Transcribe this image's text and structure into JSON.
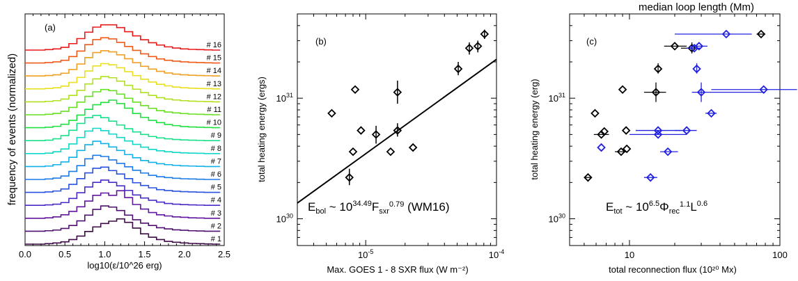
{
  "chart_data": [
    {
      "id": "a",
      "type": "line",
      "panel_label": "(a)",
      "xlabel": "log10(ε/10^26 erg)",
      "ylabel": "frequency of events (normalized)",
      "xlim": [
        0,
        2.5
      ],
      "xticks": [
        "0.0",
        "0.5",
        "1.0",
        "1.5",
        "2.0",
        "2.5"
      ],
      "xtick_values": [
        0,
        0.5,
        1.0,
        1.5,
        2.0,
        2.5
      ],
      "bins": [
        0.3,
        0.4,
        0.5,
        0.6,
        0.7,
        0.8,
        0.9,
        1.0,
        1.1,
        1.2,
        1.3,
        1.4,
        1.5,
        1.6,
        1.7,
        1.8,
        1.9,
        2.0,
        2.1,
        2.2,
        2.3,
        2.4
      ],
      "series": [
        {
          "name": "# 1",
          "color": "#3c0a44",
          "values": [
            0.02,
            0.05,
            0.1,
            0.2,
            0.35,
            0.55,
            0.75,
            0.9,
            1.0,
            1.1,
            0.95,
            0.7,
            0.45,
            0.3,
            0.2,
            0.12,
            0.08,
            0.05,
            0.03,
            0.02,
            0.01,
            0.0
          ]
        },
        {
          "name": "# 2",
          "color": "#4e1070",
          "values": [
            0.02,
            0.05,
            0.12,
            0.25,
            0.45,
            0.7,
            0.95,
            1.1,
            1.05,
            0.9,
            0.7,
            0.5,
            0.35,
            0.25,
            0.15,
            0.1,
            0.06,
            0.04,
            0.02,
            0.01,
            0.0,
            0.0
          ]
        },
        {
          "name": "# 3",
          "color": "#60159e",
          "values": [
            0.02,
            0.06,
            0.15,
            0.3,
            0.5,
            0.75,
            1.0,
            1.1,
            1.0,
            1.2,
            0.9,
            0.6,
            0.4,
            0.25,
            0.15,
            0.1,
            0.06,
            0.04,
            0.02,
            0.01,
            0.0,
            0.0
          ]
        },
        {
          "name": "# 4",
          "color": "#4a2ac8",
          "values": [
            0.02,
            0.05,
            0.12,
            0.3,
            0.55,
            0.8,
            1.0,
            1.1,
            1.0,
            0.85,
            0.65,
            0.45,
            0.32,
            0.22,
            0.14,
            0.08,
            0.05,
            0.03,
            0.02,
            0.01,
            0.0,
            0.0
          ]
        },
        {
          "name": "# 5",
          "color": "#2850e0",
          "values": [
            0.02,
            0.06,
            0.15,
            0.35,
            0.6,
            0.85,
            1.05,
            1.1,
            0.95,
            0.8,
            0.6,
            0.42,
            0.3,
            0.2,
            0.12,
            0.08,
            0.05,
            0.03,
            0.02,
            0.01,
            0.0,
            0.0
          ]
        },
        {
          "name": "# 6",
          "color": "#1a7ae8",
          "values": [
            0.02,
            0.06,
            0.15,
            0.35,
            0.6,
            0.9,
            1.05,
            1.0,
            0.85,
            0.7,
            0.55,
            0.4,
            0.28,
            0.18,
            0.12,
            0.08,
            0.05,
            0.03,
            0.02,
            0.01,
            0.0,
            0.0
          ]
        },
        {
          "name": "# 7",
          "color": "#10b0e8",
          "values": [
            0.02,
            0.08,
            0.2,
            0.4,
            0.7,
            0.95,
            1.1,
            1.0,
            0.85,
            0.7,
            0.52,
            0.38,
            0.26,
            0.18,
            0.12,
            0.08,
            0.05,
            0.03,
            0.02,
            0.01,
            0.0,
            0.0
          ]
        },
        {
          "name": "# 8",
          "color": "#10d8c8",
          "values": [
            0.02,
            0.08,
            0.2,
            0.42,
            0.7,
            0.98,
            1.1,
            1.0,
            0.85,
            0.7,
            0.55,
            0.4,
            0.28,
            0.18,
            0.12,
            0.08,
            0.05,
            0.03,
            0.02,
            0.01,
            0.0,
            0.0
          ]
        },
        {
          "name": "# 9",
          "color": "#18e08a",
          "values": [
            0.02,
            0.08,
            0.22,
            0.45,
            0.75,
            1.0,
            1.1,
            1.0,
            0.85,
            0.68,
            0.52,
            0.38,
            0.27,
            0.18,
            0.12,
            0.08,
            0.05,
            0.03,
            0.02,
            0.01,
            0.0,
            0.0
          ]
        },
        {
          "name": "# 10",
          "color": "#20e040",
          "values": [
            0.02,
            0.06,
            0.15,
            0.32,
            0.55,
            0.8,
            1.0,
            1.1,
            1.2,
            1.05,
            0.85,
            0.62,
            0.45,
            0.32,
            0.22,
            0.14,
            0.09,
            0.05,
            0.03,
            0.02,
            0.01,
            0.0
          ]
        },
        {
          "name": "# 11",
          "color": "#66e020",
          "values": [
            0.02,
            0.06,
            0.15,
            0.32,
            0.55,
            0.8,
            1.0,
            1.1,
            1.05,
            0.9,
            0.72,
            0.55,
            0.4,
            0.28,
            0.18,
            0.12,
            0.08,
            0.05,
            0.03,
            0.02,
            0.01,
            0.0
          ]
        },
        {
          "name": "# 12",
          "color": "#b0e020",
          "values": [
            0.02,
            0.05,
            0.12,
            0.28,
            0.5,
            0.78,
            1.0,
            1.1,
            1.05,
            0.9,
            0.72,
            0.55,
            0.4,
            0.28,
            0.18,
            0.12,
            0.08,
            0.05,
            0.03,
            0.02,
            0.01,
            0.0
          ]
        },
        {
          "name": "# 13",
          "color": "#e8e020",
          "values": [
            0.02,
            0.05,
            0.12,
            0.28,
            0.5,
            0.78,
            1.0,
            1.1,
            1.05,
            0.92,
            0.75,
            0.58,
            0.42,
            0.3,
            0.2,
            0.13,
            0.08,
            0.05,
            0.03,
            0.02,
            0.01,
            0.0
          ]
        },
        {
          "name": "# 14",
          "color": "#f0a020",
          "values": [
            0.02,
            0.05,
            0.12,
            0.28,
            0.52,
            0.8,
            1.02,
            1.1,
            1.05,
            0.92,
            0.75,
            0.58,
            0.42,
            0.3,
            0.2,
            0.13,
            0.08,
            0.05,
            0.03,
            0.02,
            0.01,
            0.0
          ]
        },
        {
          "name": "# 15",
          "color": "#f05a18",
          "values": [
            0.02,
            0.05,
            0.12,
            0.28,
            0.52,
            0.8,
            1.02,
            1.1,
            1.05,
            0.9,
            0.72,
            0.55,
            0.4,
            0.28,
            0.18,
            0.12,
            0.08,
            0.05,
            0.03,
            0.02,
            0.01,
            0.0
          ]
        },
        {
          "name": "# 16",
          "color": "#e81818",
          "values": [
            0.02,
            0.05,
            0.12,
            0.28,
            0.5,
            0.78,
            1.0,
            1.1,
            1.1,
            0.98,
            0.8,
            0.62,
            0.45,
            0.32,
            0.22,
            0.14,
            0.09,
            0.05,
            0.03,
            0.02,
            0.01,
            0.0
          ]
        }
      ]
    },
    {
      "id": "b",
      "type": "scatter",
      "panel_label": "(b)",
      "xlabel": "Max. GOES 1 - 8 SXR flux (W m⁻²)",
      "ylabel": "total heating energy (ergs)",
      "xscale": "log",
      "yscale": "log",
      "xlim": [
        3e-06,
        0.0001
      ],
      "ylim": [
        6e+29,
        5e+31
      ],
      "xticks": [
        {
          "value": 1e-05,
          "base": "10",
          "exp": "-5"
        },
        {
          "value": 0.0001,
          "base": "10",
          "exp": "-4"
        }
      ],
      "yticks": [
        {
          "value": 1e+30,
          "base": "10",
          "exp": "30"
        },
        {
          "value": 1e+31,
          "base": "10",
          "exp": "31"
        }
      ],
      "annotation": {
        "parts": [
          "E",
          "bol",
          " ~  10",
          "34.49",
          "F",
          "sxr",
          "0.79",
          " (WM16)"
        ]
      },
      "fit_line": {
        "x": [
          3e-06,
          0.0001
        ],
        "y": [
          1.35e+30,
          2.1e+31
        ]
      },
      "points": [
        {
          "x": 5.5e-06,
          "y": 7.5e+30,
          "xerr": [
            5.5e-06,
            5.5e-06
          ]
        },
        {
          "x": 7.5e-06,
          "y": 2.2e+30,
          "xerr": [
            7.5e-06,
            7.5e-06
          ],
          "yerr": [
            1.9e+30,
            2.6e+30
          ]
        },
        {
          "x": 8e-06,
          "y": 3.6e+30
        },
        {
          "x": 8.3e-06,
          "y": 1.18e+31
        },
        {
          "x": 9.2e-06,
          "y": 5.4e+30
        },
        {
          "x": 1.2e-05,
          "y": 5e+30,
          "yerr": [
            4.2e+30,
            5.9e+30
          ]
        },
        {
          "x": 1.55e-05,
          "y": 3.6e+30
        },
        {
          "x": 1.75e-05,
          "y": 5.4e+30,
          "yerr": [
            4.8e+30,
            6.2e+30
          ]
        },
        {
          "x": 1.75e-05,
          "y": 1.12e+31,
          "yerr": [
            9e+30,
            1.4e+31
          ]
        },
        {
          "x": 2.3e-05,
          "y": 3.9e+30
        },
        {
          "x": 5.1e-05,
          "y": 1.75e+31,
          "yerr": [
            1.55e+31,
            2e+31
          ]
        },
        {
          "x": 6.2e-05,
          "y": 2.6e+31,
          "yerr": [
            2.3e+31,
            2.9e+31
          ]
        },
        {
          "x": 7.2e-05,
          "y": 2.7e+31,
          "yerr": [
            2.4e+31,
            3e+31
          ]
        },
        {
          "x": 8.1e-05,
          "y": 3.4e+31,
          "yerr": [
            3.1e+31,
            3.7e+31
          ]
        }
      ]
    },
    {
      "id": "c",
      "type": "scatter",
      "panel_label": "(c)",
      "top_label": "median loop length (Mm)",
      "top_label_color": "#2020e0",
      "xlabel": "total reconnection flux (10²⁰ Mx)",
      "ylabel": "total heating energy (erg)",
      "xscale": "log",
      "yscale": "log",
      "xlim": [
        4,
        100
      ],
      "ylim": [
        6e+29,
        5e+31
      ],
      "xticks": [
        {
          "value": 10,
          "label": "10"
        },
        {
          "value": 100,
          "label": "100"
        }
      ],
      "yticks": [
        {
          "value": 1e+30,
          "base": "10",
          "exp": "30"
        },
        {
          "value": 1e+31,
          "base": "10",
          "exp": "31"
        }
      ],
      "annotation": {
        "parts": [
          "E",
          "tot",
          " ~  10",
          "6.5",
          "Φ",
          "rec",
          "1.1",
          "L",
          "0.6"
        ]
      },
      "series": [
        {
          "name": "reconnection flux",
          "color": "#000000",
          "points": [
            {
              "x": 5.3,
              "y": 2.2e+30,
              "xerr": [
                5.0,
                5.6
              ]
            },
            {
              "x": 5.9,
              "y": 7.5e+30
            },
            {
              "x": 6.5,
              "y": 5e+30,
              "xerr": [
                5.8,
                7.3
              ]
            },
            {
              "x": 6.8,
              "y": 5.3e+30
            },
            {
              "x": 8.8,
              "y": 3.6e+30,
              "xerr": [
                8.0,
                9.8
              ]
            },
            {
              "x": 9.0,
              "y": 1.18e+31
            },
            {
              "x": 9.5,
              "y": 5.4e+30
            },
            {
              "x": 9.6,
              "y": 3.8e+30
            },
            {
              "x": 15.0,
              "y": 1.12e+31,
              "xerr": [
                12.5,
                17.5
              ],
              "yerr": [
                9.3e+30,
                1.35e+31
              ]
            },
            {
              "x": 15.5,
              "y": 1.75e+31,
              "yerr": [
                1.6e+31,
                1.95e+31
              ]
            },
            {
              "x": 20.0,
              "y": 2.7e+31,
              "xerr": [
                17.0,
                24.0
              ]
            },
            {
              "x": 26.0,
              "y": 2.6e+31,
              "xerr": [
                22.0,
                30.0
              ],
              "yerr": [
                2.35e+31,
                2.9e+31
              ]
            },
            {
              "x": 75.0,
              "y": 3.4e+31,
              "xerr": [
                70.0,
                80.0
              ]
            }
          ]
        },
        {
          "name": "median loop length",
          "color": "#2020e0",
          "points": [
            {
              "x": 6.5,
              "y": 3.9e+30
            },
            {
              "x": 13.8,
              "y": 2.2e+30,
              "xerr": [
                12.5,
                15.3
              ]
            },
            {
              "x": 15.5,
              "y": 5e+30,
              "xerr": [
                10.0,
                24.0
              ]
            },
            {
              "x": 15.5,
              "y": 5.4e+30,
              "xerr": [
                11.0,
                22.0
              ]
            },
            {
              "x": 18.0,
              "y": 3.6e+30,
              "xerr": [
                16.0,
                21.0
              ]
            },
            {
              "x": 24.0,
              "y": 5.4e+30,
              "xerr": [
                20.0,
                28.0
              ]
            },
            {
              "x": 27.0,
              "y": 2.6e+31,
              "xerr": [
                24.0,
                30.0
              ]
            },
            {
              "x": 28.0,
              "y": 1.75e+31,
              "yerr": [
                1.6e+31,
                1.95e+31
              ]
            },
            {
              "x": 29.0,
              "y": 2.7e+31,
              "xerr": [
                25.0,
                33.0
              ]
            },
            {
              "x": 30.0,
              "y": 1.12e+31,
              "xerr": [
                26.0,
                80.0
              ],
              "yerr": [
                9.3e+30,
                1.35e+31
              ]
            },
            {
              "x": 35.0,
              "y": 7.5e+30,
              "xerr": [
                32.0,
                38.0
              ]
            },
            {
              "x": 44.0,
              "y": 3.4e+31,
              "xerr": [
                20.0,
                65.0
              ]
            },
            {
              "x": 78.0,
              "y": 1.18e+31,
              "xerr": [
                35.0,
                130.0
              ]
            }
          ]
        }
      ]
    }
  ]
}
